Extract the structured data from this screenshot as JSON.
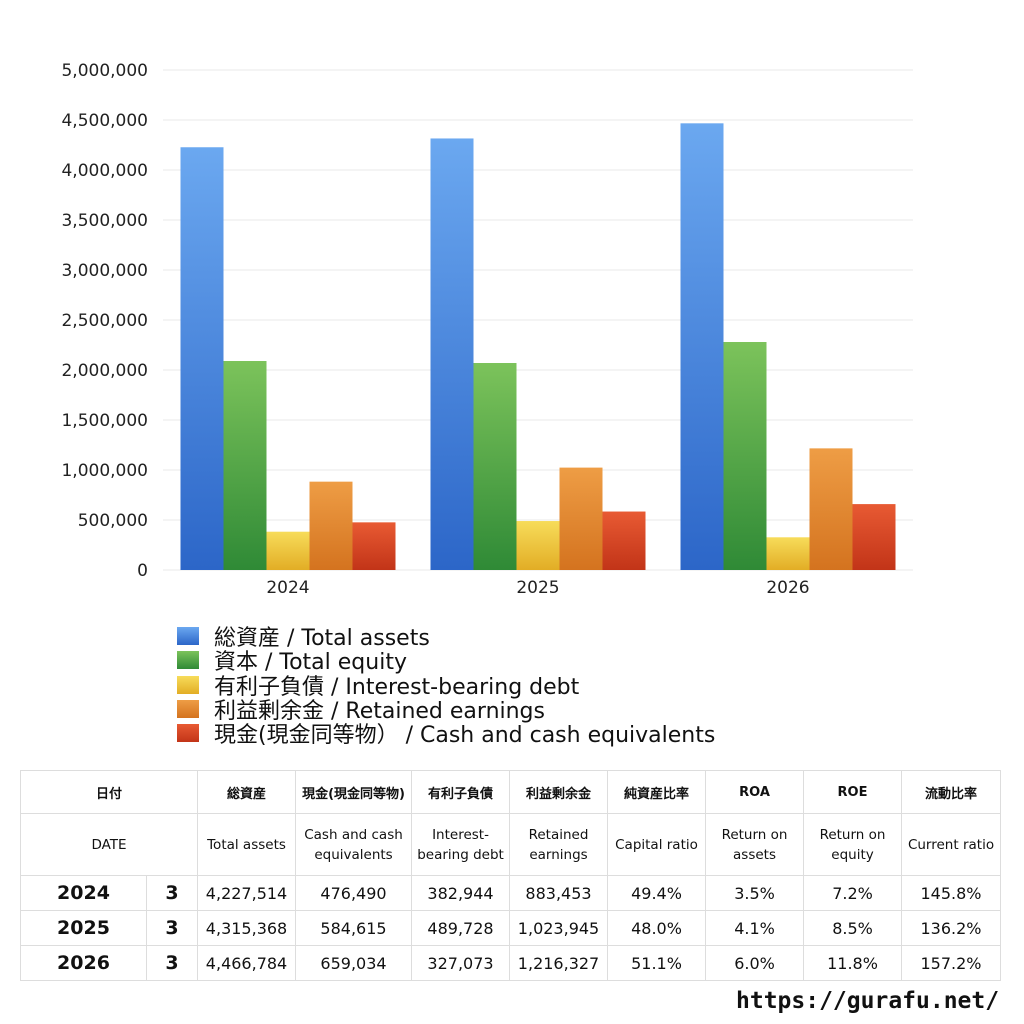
{
  "chart_data": {
    "type": "bar",
    "categories": [
      "2024",
      "2025",
      "2026"
    ],
    "series": [
      {
        "name": "総資産 / Total assets",
        "values": [
          4227514,
          4315368,
          4466784
        ],
        "color": "#3a78d8"
      },
      {
        "name": "資本 / Total equity",
        "values": [
          2090000,
          2070000,
          2280000
        ],
        "color": "#43a047"
      },
      {
        "name": "有利子負債 / Interest-bearing debt",
        "values": [
          382944,
          489728,
          327073
        ],
        "color": "#f2c438"
      },
      {
        "name": "利益剰余金 / Retained earnings",
        "values": [
          883453,
          1023945,
          1216327
        ],
        "color": "#e48a2e"
      },
      {
        "name": "現金(現金同等物） /  Cash and cash equivalents",
        "values": [
          476490,
          584615,
          659034
        ],
        "color": "#d9441f"
      }
    ],
    "ylim": [
      0,
      5000000
    ],
    "yticks": [
      "0",
      "500,000",
      "1,000,000",
      "1,500,000",
      "2,000,000",
      "2,500,000",
      "3,000,000",
      "3,500,000",
      "4,000,000",
      "4,500,000",
      "5,000,000"
    ],
    "grid": true,
    "legend": "bottom"
  },
  "table": {
    "headers_ja": [
      "日付",
      "総資産",
      "現金(現金同等物)",
      "有利子負債",
      "利益剰余金",
      "純資産比率",
      "ROA",
      "ROE",
      "流動比率"
    ],
    "headers_en": [
      "DATE",
      "Total assets",
      "Cash and cash equivalents",
      "Interest-bearing debt",
      "Retained earnings",
      "Capital ratio",
      "Return on assets",
      "Return on equity",
      "Current ratio"
    ],
    "rows": [
      {
        "year": "2024",
        "month": "3",
        "cells": [
          "4,227,514",
          "476,490",
          "382,944",
          "883,453",
          "49.4%",
          "3.5%",
          "7.2%",
          "145.8%"
        ]
      },
      {
        "year": "2025",
        "month": "3",
        "cells": [
          "4,315,368",
          "584,615",
          "489,728",
          "1,023,945",
          "48.0%",
          "4.1%",
          "8.5%",
          "136.2%"
        ]
      },
      {
        "year": "2026",
        "month": "3",
        "cells": [
          "4,466,784",
          "659,034",
          "327,073",
          "1,216,327",
          "51.1%",
          "6.0%",
          "11.8%",
          "157.2%"
        ]
      }
    ]
  },
  "footer": {
    "site": "https://gurafu.net/"
  }
}
